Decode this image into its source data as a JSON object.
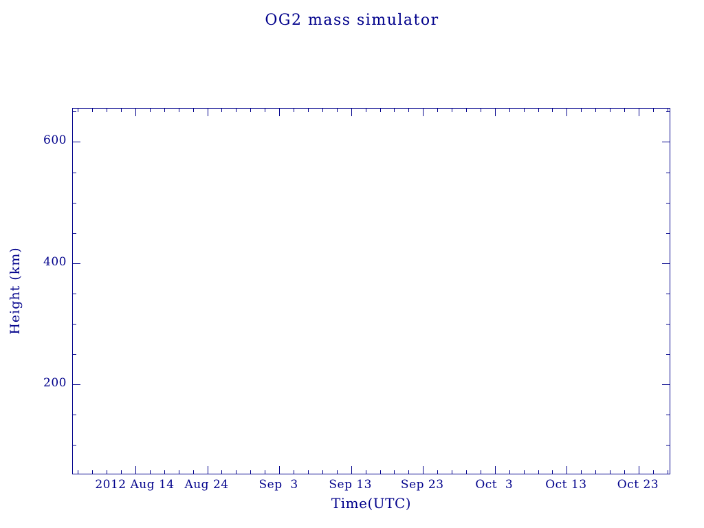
{
  "accent_color": "#00008B",
  "chart_data": {
    "type": "line",
    "title": "OG2 mass simulator",
    "xlabel": "Time(UTC)",
    "ylabel": "Height (km)",
    "series": [],
    "grid": false,
    "legend": false,
    "x_axis": {
      "tick_labels": [
        "2012 Aug 14",
        "Aug 24",
        "Sep  3",
        "Sep 13",
        "Sep 23",
        "Oct  3",
        "Oct 13",
        "Oct 23"
      ],
      "tick_days": [
        0,
        10,
        20,
        30,
        40,
        50,
        60,
        70
      ],
      "xlim_days": [
        -8.7,
        74.5
      ],
      "minor_step_days": 2
    },
    "y_axis": {
      "tick_labels": [
        "200",
        "400",
        "600"
      ],
      "tick_values": [
        200,
        400,
        600
      ],
      "ylim": [
        50,
        655
      ],
      "minor_step": 50
    }
  }
}
